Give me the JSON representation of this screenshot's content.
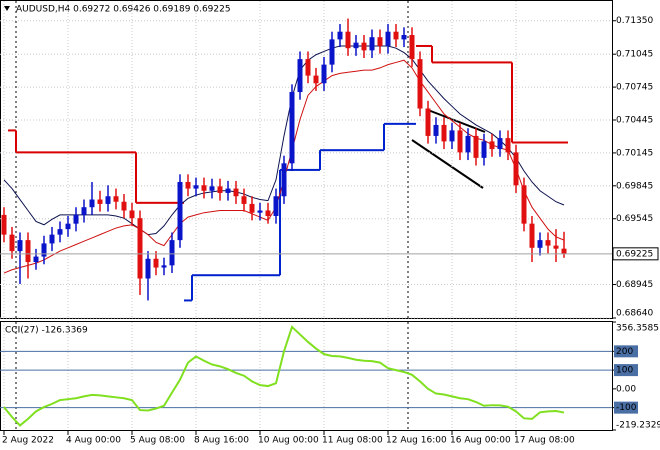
{
  "chart_data": [
    {
      "type": "candlestick",
      "title": "AUDUSD,H4  0.69272 0.69426 0.69189 0.69225",
      "categories": [
        "2 Aug 2022",
        null,
        null,
        null,
        null,
        null,
        null,
        null,
        "4 Aug 00:00",
        null,
        null,
        null,
        null,
        null,
        null,
        null,
        "5 Aug 08:00",
        null,
        null,
        null,
        null,
        null,
        null,
        null,
        "8 Aug 16:00",
        null,
        null,
        null,
        null,
        null,
        null,
        null,
        "10 Aug 00:00",
        null,
        null,
        null,
        null,
        null,
        null,
        null,
        "11 Aug 08:00",
        null,
        null,
        null,
        null,
        null,
        null,
        null,
        "12 Aug 16:00",
        null,
        null,
        null,
        null,
        null,
        null,
        null,
        "16 Aug 00:00",
        null,
        null,
        null,
        null,
        null,
        null,
        null,
        "17 Aug 08:00",
        null,
        null,
        null,
        null,
        null,
        null
      ],
      "open": [
        0.6958,
        0.694,
        0.6925,
        0.6935,
        0.6915,
        0.692,
        0.6932,
        0.694,
        0.6945,
        0.695,
        0.6958,
        0.6965,
        0.6972,
        0.6968,
        0.6975,
        0.697,
        0.6962,
        0.6955,
        0.69,
        0.6918,
        0.691,
        0.6912,
        0.6935,
        0.6988,
        0.6982,
        0.6985,
        0.698,
        0.6984,
        0.6978,
        0.6982,
        0.6975,
        0.6968,
        0.696,
        0.6962,
        0.6957,
        0.6975,
        0.7005,
        0.707,
        0.71,
        0.7085,
        0.7078,
        0.7095,
        0.7118,
        0.7125,
        0.711,
        0.7115,
        0.7108,
        0.712,
        0.7112,
        0.7125,
        0.7118,
        0.7122,
        0.71,
        0.7055,
        0.703,
        0.704,
        0.7025,
        0.7035,
        0.7015,
        0.703,
        0.701,
        0.7025,
        0.7018,
        0.7028,
        0.7015,
        0.6985,
        0.695,
        0.6928,
        0.6935,
        0.693,
        0.69272
      ],
      "high": [
        0.6965,
        0.6947,
        0.6942,
        0.6942,
        0.6927,
        0.6939,
        0.6947,
        0.6952,
        0.6957,
        0.6965,
        0.6972,
        0.6988,
        0.698,
        0.6985,
        0.6982,
        0.6977,
        0.6969,
        0.6962,
        0.6925,
        0.6925,
        0.6919,
        0.6942,
        0.6995,
        0.6995,
        0.6992,
        0.6992,
        0.6991,
        0.6991,
        0.6989,
        0.6989,
        0.6982,
        0.6975,
        0.6969,
        0.6969,
        0.6982,
        0.7012,
        0.7077,
        0.7107,
        0.7107,
        0.7092,
        0.7102,
        0.7125,
        0.7132,
        0.7137,
        0.7122,
        0.7122,
        0.7127,
        0.7127,
        0.7132,
        0.7132,
        0.7129,
        0.7129,
        0.7107,
        0.7062,
        0.7047,
        0.7047,
        0.7042,
        0.7042,
        0.7037,
        0.7037,
        0.7032,
        0.7032,
        0.7035,
        0.7035,
        0.7022,
        0.6992,
        0.6957,
        0.6942,
        0.6942,
        0.6945,
        0.69426
      ],
      "low": [
        0.6933,
        0.6918,
        0.6895,
        0.69,
        0.6908,
        0.6913,
        0.6925,
        0.6933,
        0.6938,
        0.6943,
        0.6951,
        0.6958,
        0.6961,
        0.6961,
        0.6963,
        0.6955,
        0.6948,
        0.6885,
        0.688,
        0.6903,
        0.6903,
        0.6905,
        0.6928,
        0.6975,
        0.6975,
        0.6973,
        0.6973,
        0.6971,
        0.6971,
        0.6968,
        0.6961,
        0.6953,
        0.6953,
        0.695,
        0.695,
        0.6968,
        0.6998,
        0.7063,
        0.7078,
        0.7071,
        0.7071,
        0.7088,
        0.7111,
        0.7103,
        0.7103,
        0.7101,
        0.7101,
        0.7105,
        0.7105,
        0.7111,
        0.7111,
        0.7093,
        0.7048,
        0.7023,
        0.7023,
        0.7018,
        0.7018,
        0.7008,
        0.7008,
        0.7003,
        0.7003,
        0.7011,
        0.7011,
        0.7008,
        0.6978,
        0.6943,
        0.6915,
        0.6921,
        0.6923,
        0.6915,
        0.69189
      ],
      "close": [
        0.694,
        0.6925,
        0.6935,
        0.6915,
        0.692,
        0.6932,
        0.694,
        0.6945,
        0.695,
        0.6958,
        0.6965,
        0.6972,
        0.6968,
        0.6975,
        0.697,
        0.6962,
        0.6955,
        0.69,
        0.6918,
        0.691,
        0.6912,
        0.6935,
        0.6988,
        0.6982,
        0.6985,
        0.698,
        0.6984,
        0.6978,
        0.6982,
        0.6975,
        0.6968,
        0.696,
        0.6962,
        0.6957,
        0.6975,
        0.7005,
        0.707,
        0.71,
        0.7085,
        0.7078,
        0.7095,
        0.7118,
        0.7125,
        0.711,
        0.7115,
        0.7108,
        0.712,
        0.7112,
        0.7125,
        0.7118,
        0.7122,
        0.71,
        0.7055,
        0.703,
        0.704,
        0.7025,
        0.7035,
        0.7015,
        0.703,
        0.701,
        0.7025,
        0.7018,
        0.7028,
        0.7015,
        0.6985,
        0.695,
        0.6928,
        0.6935,
        0.693,
        0.69272,
        0.69225
      ],
      "up_color": "#0a14c8",
      "down_color": "#e01010",
      "series": [
        {
          "color": "#d80000",
          "step": true,
          "values": [
            null,
            0.7035,
            0.7015,
            0.7015,
            0.7015,
            0.7015,
            0.7015,
            0.7015,
            0.7015,
            0.7015,
            0.7015,
            0.7015,
            0.7015,
            0.7015,
            0.7015,
            0.7015,
            0.7015,
            0.6969,
            0.6969,
            0.6969,
            0.6969,
            0.6969,
            0.6969,
            null,
            null,
            null,
            null,
            null,
            null,
            null,
            null,
            null,
            null,
            null,
            null,
            null,
            null,
            null,
            null,
            null,
            null,
            null,
            null,
            null,
            null,
            null,
            null,
            null,
            null,
            null,
            null,
            null,
            0.7112,
            0.7112,
            0.7097,
            0.7097,
            0.7097,
            0.7097,
            0.7097,
            0.7097,
            0.7097,
            0.7097,
            0.7097,
            0.7097,
            0.7024,
            0.7024,
            0.7024,
            0.7024,
            0.7024,
            0.7024,
            0.7024
          ]
        },
        {
          "color": "#0022cc",
          "step": true,
          "values": [
            null,
            null,
            null,
            null,
            null,
            null,
            null,
            null,
            null,
            null,
            null,
            null,
            null,
            null,
            null,
            null,
            null,
            null,
            null,
            null,
            null,
            null,
            null,
            0.688,
            0.6903,
            0.6903,
            0.6903,
            0.6903,
            0.6903,
            0.6903,
            0.6903,
            0.6903,
            0.6903,
            0.6903,
            0.6903,
            0.6999,
            0.6999,
            0.6999,
            0.6999,
            0.6999,
            0.7017,
            0.7017,
            0.7017,
            0.7017,
            0.7017,
            0.7017,
            0.7017,
            0.7017,
            0.7041,
            0.7041,
            0.7041,
            0.7041,
            null,
            null,
            null,
            null,
            null,
            null,
            null,
            null,
            null,
            null,
            null,
            null,
            null,
            null,
            null,
            null,
            null,
            null,
            null
          ]
        },
        {
          "color": "#0c1250",
          "step": false,
          "values": [
            0.699,
            0.6982,
            0.6972,
            0.6962,
            0.6952,
            0.6949,
            0.6954,
            0.6958,
            0.6958,
            0.6958,
            0.6958,
            0.6958,
            0.6958,
            0.6958,
            0.6957,
            0.6955,
            0.695,
            0.6945,
            0.694,
            0.6941,
            0.6948,
            0.6958,
            0.6967,
            0.6973,
            0.6976,
            0.6978,
            0.6979,
            0.698,
            0.698,
            0.6979,
            0.6977,
            0.6974,
            0.6972,
            0.6971,
            0.699,
            0.703,
            0.7065,
            0.709,
            0.7099,
            0.7104,
            0.7107,
            0.711,
            0.7112,
            0.7112,
            0.7112,
            0.7112,
            0.7112,
            0.7112,
            0.7112,
            0.711,
            0.7106,
            0.71,
            0.709,
            0.708,
            0.7072,
            0.7064,
            0.7057,
            0.705,
            0.7045,
            0.704,
            0.7036,
            0.7032,
            0.7026,
            0.7019,
            0.701,
            0.6998,
            0.6988,
            0.698,
            0.6975,
            0.697,
            0.6967
          ]
        },
        {
          "color": "#d01010",
          "step": false,
          "values": [
            0.6905,
            0.6908,
            0.691,
            0.6912,
            0.6914,
            0.6917,
            0.6921,
            0.6925,
            0.6928,
            0.6931,
            0.6934,
            0.6937,
            0.694,
            0.6943,
            0.6946,
            0.6948,
            0.6949,
            0.6945,
            0.694,
            0.6933,
            0.693,
            0.694,
            0.695,
            0.6956,
            0.6958,
            0.696,
            0.6961,
            0.6962,
            0.6962,
            0.6962,
            0.6962,
            0.6959,
            0.6956,
            0.6953,
            0.6965,
            0.699,
            0.7017,
            0.7045,
            0.7067,
            0.7075,
            0.708,
            0.7085,
            0.7087,
            0.7088,
            0.7089,
            0.709,
            0.709,
            0.7092,
            0.7095,
            0.7097,
            0.7099,
            0.7092,
            0.708,
            0.707,
            0.706,
            0.705,
            0.7044,
            0.7038,
            0.7032,
            0.7028,
            0.7026,
            0.7022,
            0.7019,
            0.7017,
            0.7,
            0.698,
            0.6965,
            0.6955,
            0.6945,
            0.6938,
            0.6935
          ]
        }
      ],
      "ylim": [
        0.6864,
        0.7153
      ],
      "yticks": [
        {
          "value": 0.7135,
          "label": "0.71350"
        },
        0.71045,
        0.70745,
        0.70445,
        0.70145,
        0.69845,
        0.69545,
        0.68945,
        {
          "value": 0.6864,
          "label": "0.68640"
        }
      ],
      "grid": true
    },
    {
      "type": "line",
      "title": "CCI(27) -126.3369",
      "color": "#80e020",
      "values": [
        -97,
        -150,
        -195,
        -160,
        -120,
        -97,
        -80,
        -60,
        -55,
        -50,
        -40,
        -32,
        -35,
        -40,
        -45,
        -50,
        -60,
        -113,
        -115,
        -105,
        -90,
        -20,
        49,
        140,
        173,
        150,
        130,
        120,
        105,
        85,
        70,
        40,
        20,
        15,
        30,
        200,
        330,
        290,
        250,
        215,
        185,
        175,
        173,
        165,
        155,
        150,
        148,
        140,
        110,
        100,
        90,
        75,
        40,
        0,
        -25,
        -30,
        -40,
        -50,
        -55,
        -70,
        -90,
        -87,
        -88,
        -95,
        -120,
        -157,
        -160,
        -125,
        -120,
        -118,
        -126.3369
      ],
      "ylim": [
        -219.2329,
        356.3585
      ],
      "yticks": [
        356.3585,
        200,
        100,
        {
          "value": 0,
          "label": "0.00"
        },
        -100,
        -219.2329
      ],
      "levels": [
        200,
        100,
        -100
      ],
      "grid": true
    }
  ]
}
